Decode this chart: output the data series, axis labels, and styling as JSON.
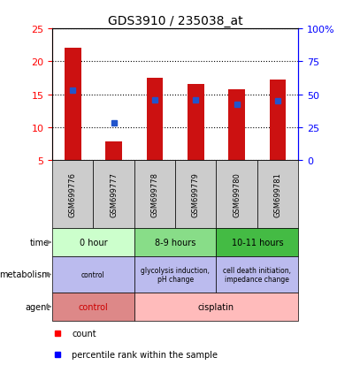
{
  "title": "GDS3910 / 235038_at",
  "samples": [
    "GSM699776",
    "GSM699777",
    "GSM699778",
    "GSM699779",
    "GSM699780",
    "GSM699781"
  ],
  "bar_heights": [
    22.0,
    7.9,
    17.5,
    16.5,
    15.7,
    17.2
  ],
  "bar_base": 5.0,
  "blue_y": [
    15.6,
    10.6,
    14.2,
    14.2,
    13.5,
    14.0
  ],
  "ylim_left": [
    5,
    25
  ],
  "ylim_right": [
    0,
    100
  ],
  "yticks_left": [
    5,
    10,
    15,
    20,
    25
  ],
  "yticks_right": [
    0,
    25,
    50,
    75,
    100
  ],
  "bar_color": "#cc1111",
  "blue_color": "#2255cc",
  "plot_bg": "#ffffff",
  "gray_color": "#cccccc",
  "time_groups": [
    {
      "label": "0 hour",
      "start": 0,
      "end": 1,
      "color": "#ccffcc"
    },
    {
      "label": "8-9 hours",
      "start": 2,
      "end": 3,
      "color": "#88dd88"
    },
    {
      "label": "10-11 hours",
      "start": 4,
      "end": 5,
      "color": "#44bb44"
    }
  ],
  "metab_groups": [
    {
      "label": "control",
      "start": 0,
      "end": 1,
      "color": "#bbbbee"
    },
    {
      "label": "glycolysis induction,\npH change",
      "start": 2,
      "end": 3,
      "color": "#bbbbee"
    },
    {
      "label": "cell death initiation,\nimpedance change",
      "start": 4,
      "end": 5,
      "color": "#bbbbee"
    }
  ],
  "agent_groups": [
    {
      "label": "control",
      "start": 0,
      "end": 1,
      "color": "#dd8888",
      "text_color": "#cc0000"
    },
    {
      "label": "cisplatin",
      "start": 2,
      "end": 5,
      "color": "#ffbbbb",
      "text_color": "#000000"
    }
  ],
  "row_labels": [
    "time",
    "metabolism",
    "agent"
  ]
}
